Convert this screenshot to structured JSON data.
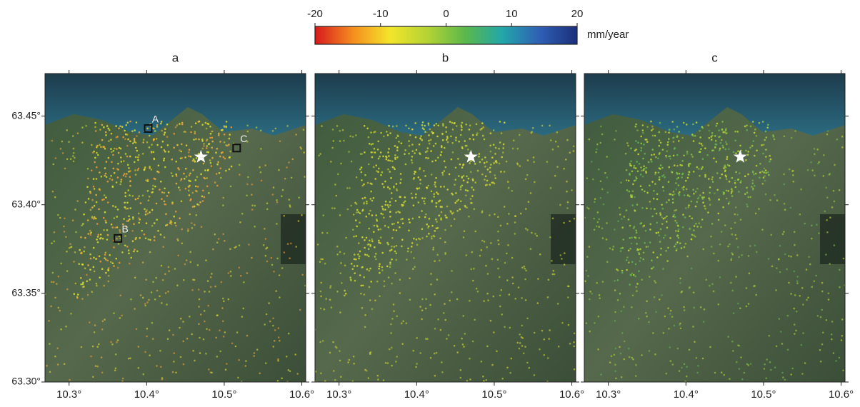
{
  "colorbar": {
    "range": [
      -20,
      20
    ],
    "ticks": [
      -20,
      -10,
      0,
      10,
      20
    ],
    "unit": "mm/year",
    "colors": [
      "#d7191c",
      "#f48c1e",
      "#f3e52b",
      "#b5d334",
      "#5cb84a",
      "#22a7a9",
      "#2f5fb5",
      "#1b2f7a"
    ]
  },
  "xlim": [
    10.269,
    10.605
  ],
  "ylim": [
    63.3,
    63.474
  ],
  "lat_ticks": [
    {
      "value": 63.45,
      "label": "63.45°"
    },
    {
      "value": 63.4,
      "label": "63.40°"
    },
    {
      "value": 63.35,
      "label": "63.35°"
    },
    {
      "value": 63.3,
      "label": "63.30°"
    }
  ],
  "lon_ticks": [
    {
      "value": 10.3,
      "label": "10.3°"
    },
    {
      "value": 10.4,
      "label": "10.4°"
    },
    {
      "value": 10.5,
      "label": "10.5°"
    },
    {
      "value": 10.6,
      "label": "10.6°"
    }
  ],
  "star": {
    "lon": 10.47,
    "lat": 63.427
  },
  "panels": [
    {
      "label": "a",
      "dot_colors": [
        "#e8d52a",
        "#f0b43a",
        "#dfe030",
        "#f19a35",
        "#c9d92e"
      ],
      "sites": [
        {
          "label": "A",
          "lon": 10.402,
          "lat": 63.443
        },
        {
          "label": "B",
          "lon": 10.363,
          "lat": 63.381
        },
        {
          "label": "C",
          "lon": 10.516,
          "lat": 63.432
        }
      ]
    },
    {
      "label": "b",
      "dot_colors": [
        "#c8d631",
        "#d9dc2e",
        "#b7cf33",
        "#e2d92c"
      ],
      "sites": []
    },
    {
      "label": "c",
      "dot_colors": [
        "#9fcc3a",
        "#7fc046",
        "#b8d334",
        "#5fb355",
        "#c9d72f"
      ],
      "sites": []
    }
  ]
}
